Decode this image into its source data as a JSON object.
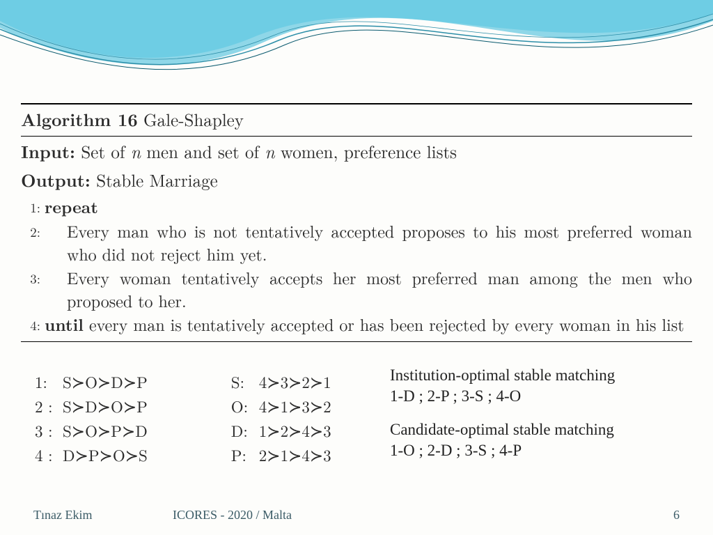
{
  "header": {
    "wave_fill_top": "#8fd7e8",
    "wave_fill_mid": "#5fc9e3",
    "wave_stroke": "#2b8ea8",
    "wave_stroke2": "#0a5a6e"
  },
  "algorithm": {
    "number_word": "Algorithm 16",
    "name": "Gale-Shapley",
    "input_kw": "Input:",
    "input_text_a": "Set of ",
    "input_text_b": " men and set of ",
    "input_text_c": " women, preference lists",
    "n": "n",
    "output_kw": "Output:",
    "output_text": "Stable Marriage",
    "steps": [
      {
        "num": "1:",
        "kw": "repeat",
        "text": "",
        "indent": false
      },
      {
        "num": "2:",
        "kw": "",
        "text": "Every man who is not tentatively accepted proposes to his most preferred woman who did not reject him yet.",
        "indent": true
      },
      {
        "num": "3:",
        "kw": "",
        "text": "Every woman tentatively accepts her most preferred man among the men who proposed to her.",
        "indent": true
      },
      {
        "num": "4:",
        "kw": "until",
        "text": " every man is tentatively accepted or has been rejected by every woman in his list",
        "indent": false
      }
    ]
  },
  "preferences": {
    "left": [
      {
        "label": "1:",
        "order": [
          "S",
          "O",
          "D",
          "P"
        ]
      },
      {
        "label": "2 :",
        "order": [
          "S",
          "D",
          "O",
          "P"
        ]
      },
      {
        "label": "3 :",
        "order": [
          "S",
          "O",
          "P",
          "D"
        ]
      },
      {
        "label": "4 :",
        "order": [
          "D",
          "P",
          "O",
          "S"
        ]
      }
    ],
    "right": [
      {
        "label": "S:",
        "order": [
          "4",
          "3",
          "2",
          "1"
        ]
      },
      {
        "label": "O:",
        "order": [
          "4",
          "1",
          "3",
          "2"
        ]
      },
      {
        "label": "D:",
        "order": [
          "1",
          "2",
          "4",
          "3"
        ]
      },
      {
        "label": "P:",
        "order": [
          "2",
          "1",
          "4",
          "3"
        ]
      }
    ],
    "succ_glyph": "≻"
  },
  "results": {
    "inst_title": "Institution-optimal stable matching",
    "inst_line": "1-D ; 2-P ; 3-S ; 4-O",
    "cand_title": "Candidate-optimal stable matching",
    "cand_line": "1-O ; 2-D ; 3-S ; 4-P"
  },
  "footer": {
    "author": "Tınaz Ekim",
    "venue": "ICORES - 2020 / Malta",
    "page": "6",
    "color": "#3b5b66"
  },
  "colors": {
    "text": "#2b2b2b",
    "bg": "#fdfdfb"
  }
}
